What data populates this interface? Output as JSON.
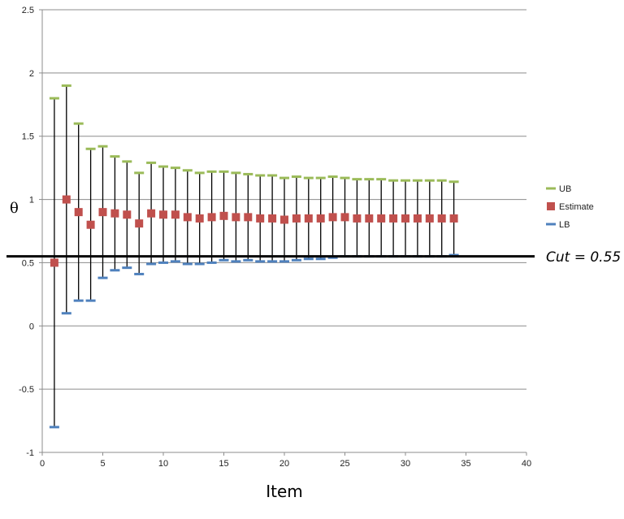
{
  "chart_data": {
    "type": "scatter",
    "title": "",
    "xlabel": "Item",
    "ylabel": "θ",
    "xlim": [
      0,
      40
    ],
    "ylim": [
      -1,
      2.5
    ],
    "xticks": [
      "0",
      "5",
      "10",
      "15",
      "20",
      "25",
      "30",
      "35",
      "40"
    ],
    "yticks": [
      "-1",
      "-0.5",
      "0",
      "0.5",
      "1",
      "1.5",
      "2",
      "2.5"
    ],
    "grid": "horizontal",
    "legend_position": "right",
    "x": [
      1,
      2,
      3,
      4,
      5,
      6,
      7,
      8,
      9,
      10,
      11,
      12,
      13,
      14,
      15,
      16,
      17,
      18,
      19,
      20,
      21,
      22,
      23,
      24,
      25,
      26,
      27,
      28,
      29,
      30,
      31,
      32,
      33,
      34
    ],
    "series": [
      {
        "name": "UB",
        "color": "#9BBB59",
        "values": [
          1.8,
          1.9,
          1.6,
          1.4,
          1.42,
          1.34,
          1.3,
          1.21,
          1.29,
          1.26,
          1.25,
          1.23,
          1.21,
          1.22,
          1.22,
          1.21,
          1.2,
          1.19,
          1.19,
          1.17,
          1.18,
          1.17,
          1.17,
          1.18,
          1.17,
          1.16,
          1.16,
          1.16,
          1.15,
          1.15,
          1.15,
          1.15,
          1.15,
          1.14
        ]
      },
      {
        "name": "Estimate",
        "color": "#C0504D",
        "values": [
          0.5,
          1.0,
          0.9,
          0.8,
          0.9,
          0.89,
          0.88,
          0.81,
          0.89,
          0.88,
          0.88,
          0.86,
          0.85,
          0.86,
          0.87,
          0.86,
          0.86,
          0.85,
          0.85,
          0.84,
          0.85,
          0.85,
          0.85,
          0.86,
          0.86,
          0.85,
          0.85,
          0.85,
          0.85,
          0.85,
          0.85,
          0.85,
          0.85,
          0.85
        ]
      },
      {
        "name": "LB",
        "color": "#4F81BD",
        "values": [
          -0.8,
          0.1,
          0.2,
          0.2,
          0.38,
          0.44,
          0.46,
          0.41,
          0.49,
          0.5,
          0.51,
          0.49,
          0.49,
          0.5,
          0.52,
          0.51,
          0.52,
          0.51,
          0.51,
          0.51,
          0.52,
          0.53,
          0.53,
          0.54,
          0.55,
          0.55,
          0.55,
          0.55,
          0.55,
          0.55,
          0.55,
          0.55,
          0.55,
          0.56
        ]
      }
    ],
    "annotations": [
      {
        "text": "Cut = 0.55",
        "value": 0.55
      }
    ]
  }
}
